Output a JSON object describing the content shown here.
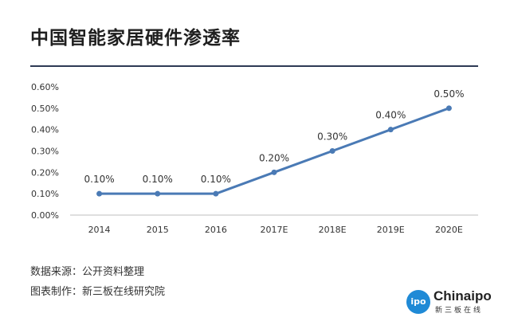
{
  "title": "中国智能家居硬件渗透率",
  "footnotes": {
    "source": "数据来源：公开资料整理",
    "maker": "图表制作：新三板在线研究院"
  },
  "logo": {
    "badge": "ipo",
    "name": "Chinaipo",
    "subtitle": "新三板在线"
  },
  "colors": {
    "line": "#4a7ab5",
    "axis": "#bfbfbf",
    "text": "#333333"
  },
  "chart_data": {
    "type": "line",
    "categories": [
      "2014",
      "2015",
      "2016",
      "2017E",
      "2018E",
      "2019E",
      "2020E"
    ],
    "series": [
      {
        "values": [
          0.1,
          0.1,
          0.1,
          0.2,
          0.3,
          0.4,
          0.5
        ]
      }
    ],
    "data_labels": [
      "0.10%",
      "0.10%",
      "0.10%",
      "0.20%",
      "0.30%",
      "0.40%",
      "0.50%"
    ],
    "y_ticks": [
      "0.00%",
      "0.10%",
      "0.20%",
      "0.30%",
      "0.40%",
      "0.50%",
      "0.60%"
    ],
    "ylim": [
      0,
      0.6
    ],
    "unit": "%",
    "grid": false,
    "legend": "none"
  }
}
